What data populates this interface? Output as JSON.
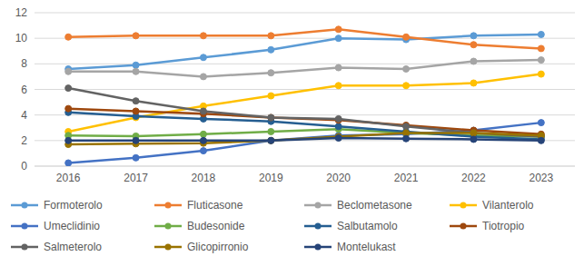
{
  "chart_data": {
    "type": "line",
    "categories": [
      "2016",
      "2017",
      "2018",
      "2019",
      "2020",
      "2021",
      "2022",
      "2023"
    ],
    "series": [
      {
        "name": "Formoterolo",
        "color": "#5b9bd5",
        "values": [
          7.6,
          7.9,
          8.5,
          9.1,
          10.0,
          9.9,
          10.2,
          10.3
        ]
      },
      {
        "name": "Fluticasone",
        "color": "#ed7d31",
        "values": [
          10.1,
          10.2,
          10.2,
          10.2,
          10.7,
          10.1,
          9.5,
          9.2
        ]
      },
      {
        "name": "Beclometasone",
        "color": "#a5a5a5",
        "values": [
          7.4,
          7.4,
          7.0,
          7.3,
          7.7,
          7.6,
          8.2,
          8.3
        ]
      },
      {
        "name": "Vilanterolo",
        "color": "#ffc000",
        "values": [
          2.7,
          3.8,
          4.7,
          5.5,
          6.3,
          6.3,
          6.5,
          7.2
        ]
      },
      {
        "name": "Umeclidinio",
        "color": "#4472c4",
        "values": [
          0.25,
          0.65,
          1.2,
          2.0,
          2.4,
          2.5,
          2.8,
          3.4
        ]
      },
      {
        "name": "Budesonide",
        "color": "#70ad47",
        "values": [
          2.4,
          2.35,
          2.5,
          2.7,
          2.9,
          2.6,
          2.4,
          2.3
        ]
      },
      {
        "name": "Salbutamolo",
        "color": "#255e91",
        "values": [
          4.2,
          3.9,
          3.7,
          3.5,
          3.1,
          2.7,
          2.3,
          2.1
        ]
      },
      {
        "name": "Tiotropio",
        "color": "#9e480e",
        "values": [
          4.5,
          4.3,
          4.1,
          3.8,
          3.6,
          3.2,
          2.8,
          2.5
        ]
      },
      {
        "name": "Salmeterolo",
        "color": "#636363",
        "values": [
          6.1,
          5.1,
          4.3,
          3.8,
          3.7,
          3.1,
          2.6,
          2.3
        ]
      },
      {
        "name": "Glicopirronio",
        "color": "#997300",
        "values": [
          1.7,
          1.75,
          1.8,
          2.0,
          2.3,
          2.6,
          2.6,
          2.4
        ]
      },
      {
        "name": "Montelukast",
        "color": "#264478",
        "values": [
          2.0,
          2.0,
          2.0,
          2.0,
          2.2,
          2.15,
          2.1,
          2.0
        ]
      }
    ],
    "ylim": [
      0,
      12
    ],
    "yticks": [
      0,
      2,
      4,
      6,
      8,
      10,
      12
    ],
    "grid": true,
    "legend": "bottom",
    "marker": "circle"
  }
}
